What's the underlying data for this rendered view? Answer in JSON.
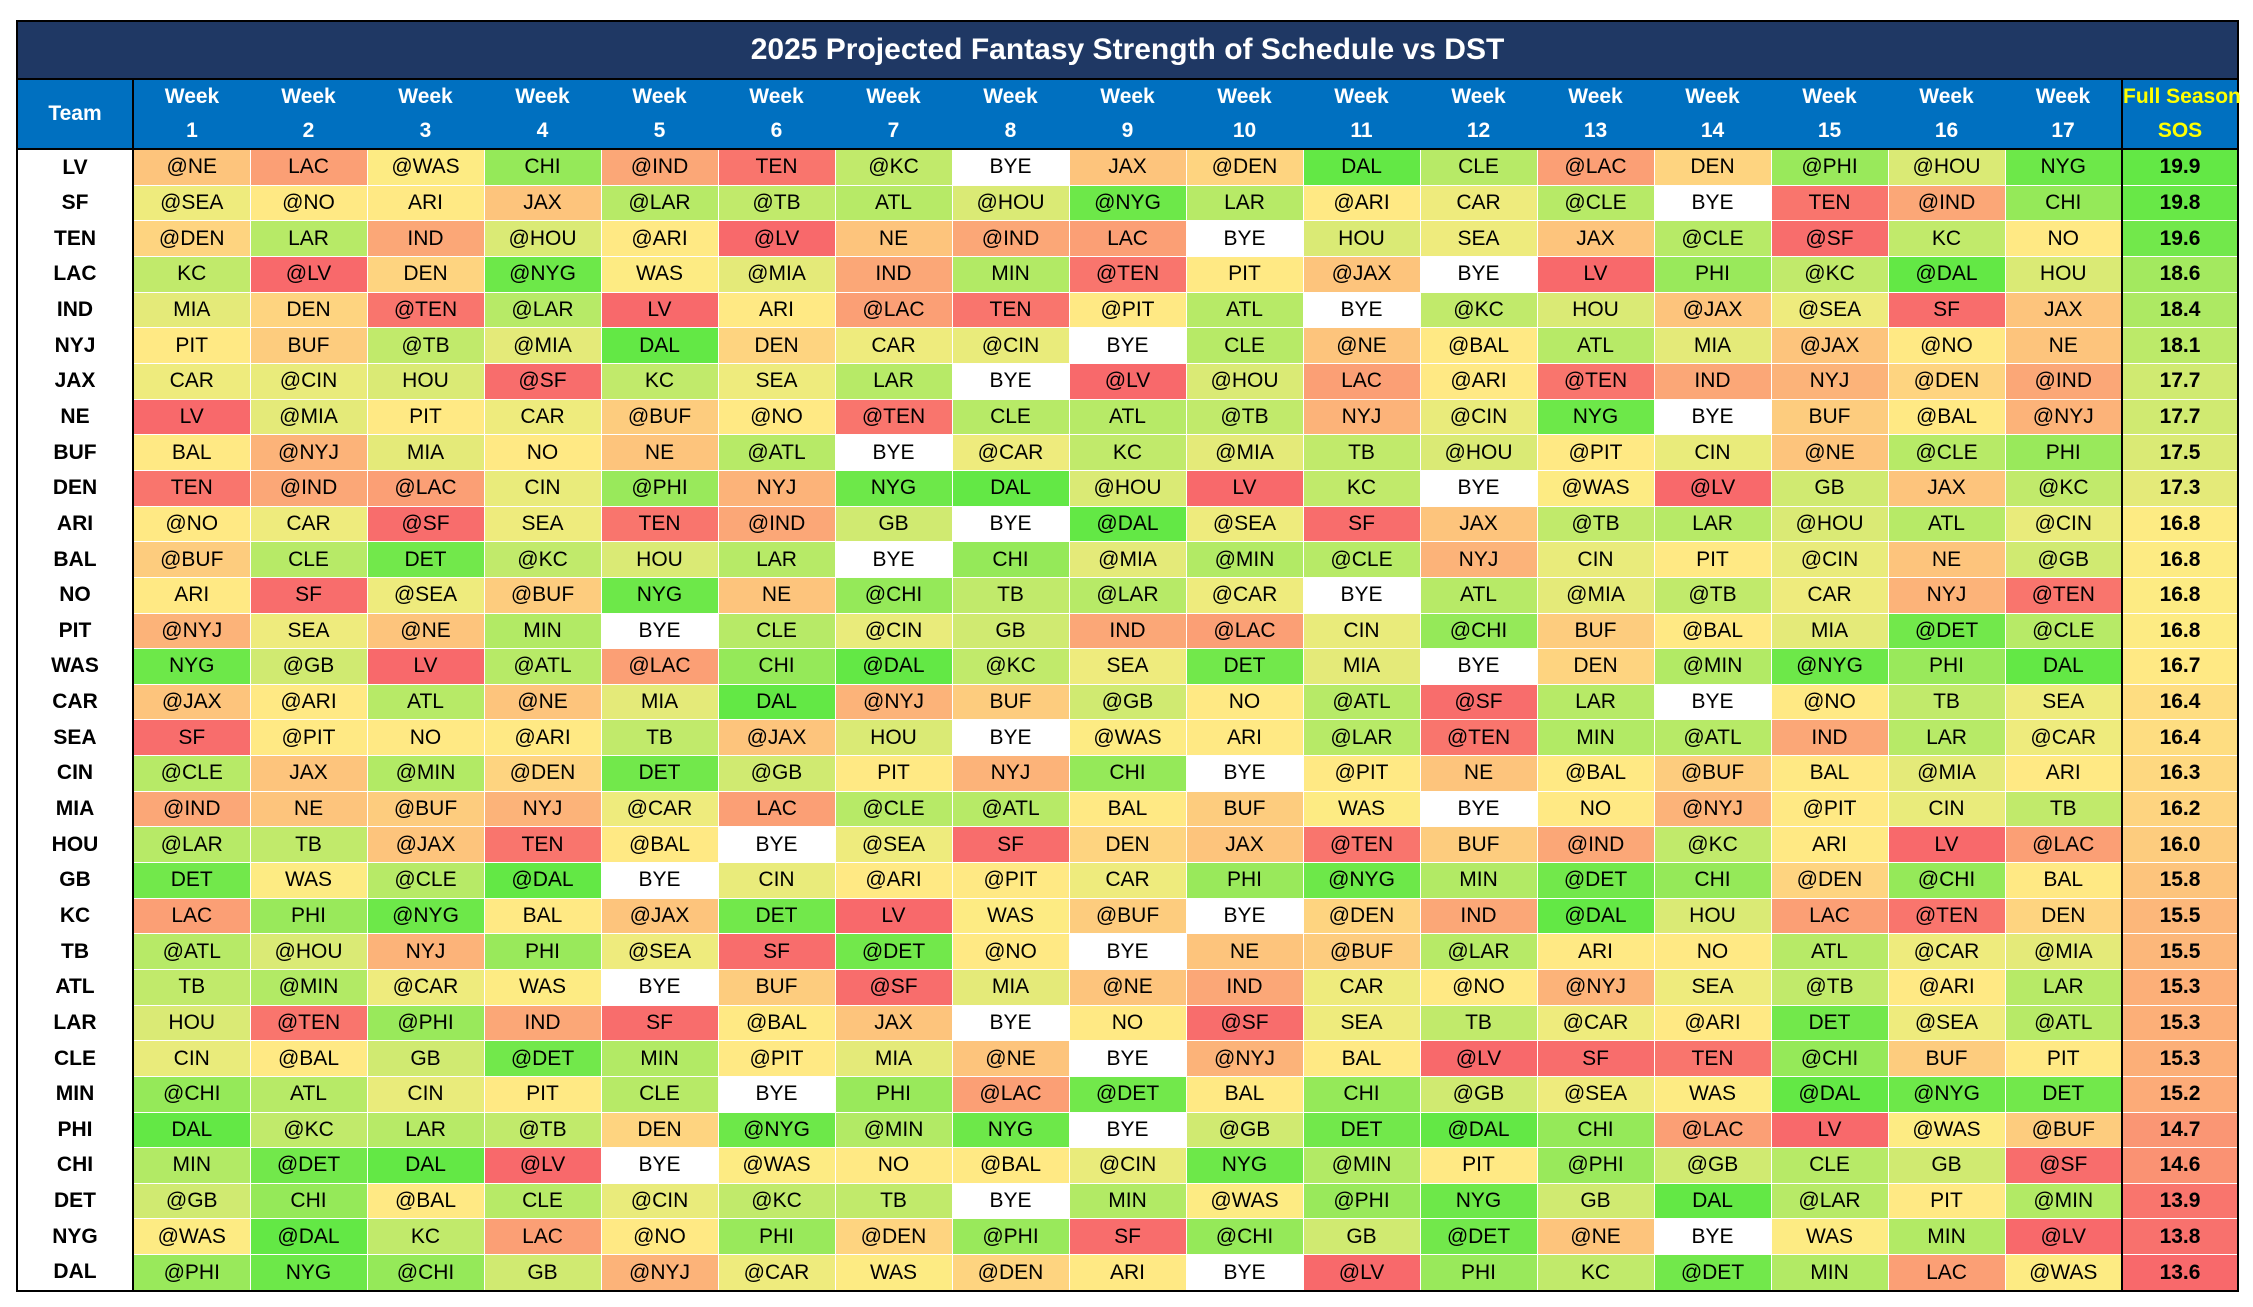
{
  "title": "2025 Projected Fantasy Strength of Schedule vs DST",
  "header": {
    "team": "Team",
    "week_word": "Week",
    "weeks": [
      "1",
      "2",
      "3",
      "4",
      "5",
      "6",
      "7",
      "8",
      "9",
      "10",
      "11",
      "12",
      "13",
      "14",
      "15",
      "16",
      "17"
    ],
    "sos_line1": "Full Season",
    "sos_line2": "SOS"
  },
  "rows": [
    {
      "team": "LV",
      "games": [
        "@NE",
        "LAC",
        "@WAS",
        "CHI",
        "@IND",
        "TEN",
        "@KC",
        "BYE",
        "JAX",
        "@DEN",
        "DAL",
        "CLE",
        "@LAC",
        "DEN",
        "@PHI",
        "@HOU",
        "NYG"
      ],
      "sos": "19.9"
    },
    {
      "team": "SF",
      "games": [
        "@SEA",
        "@NO",
        "ARI",
        "JAX",
        "@LAR",
        "@TB",
        "ATL",
        "@HOU",
        "@NYG",
        "LAR",
        "@ARI",
        "CAR",
        "@CLE",
        "BYE",
        "TEN",
        "@IND",
        "CHI"
      ],
      "sos": "19.8"
    },
    {
      "team": "TEN",
      "games": [
        "@DEN",
        "LAR",
        "IND",
        "@HOU",
        "@ARI",
        "@LV",
        "NE",
        "@IND",
        "LAC",
        "BYE",
        "HOU",
        "SEA",
        "JAX",
        "@CLE",
        "@SF",
        "KC",
        "NO"
      ],
      "sos": "19.6"
    },
    {
      "team": "LAC",
      "games": [
        "KC",
        "@LV",
        "DEN",
        "@NYG",
        "WAS",
        "@MIA",
        "IND",
        "MIN",
        "@TEN",
        "PIT",
        "@JAX",
        "BYE",
        "LV",
        "PHI",
        "@KC",
        "@DAL",
        "HOU"
      ],
      "sos": "18.6"
    },
    {
      "team": "IND",
      "games": [
        "MIA",
        "DEN",
        "@TEN",
        "@LAR",
        "LV",
        "ARI",
        "@LAC",
        "TEN",
        "@PIT",
        "ATL",
        "BYE",
        "@KC",
        "HOU",
        "@JAX",
        "@SEA",
        "SF",
        "JAX"
      ],
      "sos": "18.4"
    },
    {
      "team": "NYJ",
      "games": [
        "PIT",
        "BUF",
        "@TB",
        "@MIA",
        "DAL",
        "DEN",
        "CAR",
        "@CIN",
        "BYE",
        "CLE",
        "@NE",
        "@BAL",
        "ATL",
        "MIA",
        "@JAX",
        "@NO",
        "NE"
      ],
      "sos": "18.1"
    },
    {
      "team": "JAX",
      "games": [
        "CAR",
        "@CIN",
        "HOU",
        "@SF",
        "KC",
        "SEA",
        "LAR",
        "BYE",
        "@LV",
        "@HOU",
        "LAC",
        "@ARI",
        "@TEN",
        "IND",
        "NYJ",
        "@DEN",
        "@IND"
      ],
      "sos": "17.7"
    },
    {
      "team": "NE",
      "games": [
        "LV",
        "@MIA",
        "PIT",
        "CAR",
        "@BUF",
        "@NO",
        "@TEN",
        "CLE",
        "ATL",
        "@TB",
        "NYJ",
        "@CIN",
        "NYG",
        "BYE",
        "BUF",
        "@BAL",
        "@NYJ"
      ],
      "sos": "17.7"
    },
    {
      "team": "BUF",
      "games": [
        "BAL",
        "@NYJ",
        "MIA",
        "NO",
        "NE",
        "@ATL",
        "BYE",
        "@CAR",
        "KC",
        "@MIA",
        "TB",
        "@HOU",
        "@PIT",
        "CIN",
        "@NE",
        "@CLE",
        "PHI"
      ],
      "sos": "17.5"
    },
    {
      "team": "DEN",
      "games": [
        "TEN",
        "@IND",
        "@LAC",
        "CIN",
        "@PHI",
        "NYJ",
        "NYG",
        "DAL",
        "@HOU",
        "LV",
        "KC",
        "BYE",
        "@WAS",
        "@LV",
        "GB",
        "JAX",
        "@KC"
      ],
      "sos": "17.3"
    },
    {
      "team": "ARI",
      "games": [
        "@NO",
        "CAR",
        "@SF",
        "SEA",
        "TEN",
        "@IND",
        "GB",
        "BYE",
        "@DAL",
        "@SEA",
        "SF",
        "JAX",
        "@TB",
        "LAR",
        "@HOU",
        "ATL",
        "@CIN"
      ],
      "sos": "16.8"
    },
    {
      "team": "BAL",
      "games": [
        "@BUF",
        "CLE",
        "DET",
        "@KC",
        "HOU",
        "LAR",
        "BYE",
        "CHI",
        "@MIA",
        "@MIN",
        "@CLE",
        "NYJ",
        "CIN",
        "PIT",
        "@CIN",
        "NE",
        "@GB"
      ],
      "sos": "16.8"
    },
    {
      "team": "NO",
      "games": [
        "ARI",
        "SF",
        "@SEA",
        "@BUF",
        "NYG",
        "NE",
        "@CHI",
        "TB",
        "@LAR",
        "@CAR",
        "BYE",
        "ATL",
        "@MIA",
        "@TB",
        "CAR",
        "NYJ",
        "@TEN"
      ],
      "sos": "16.8"
    },
    {
      "team": "PIT",
      "games": [
        "@NYJ",
        "SEA",
        "@NE",
        "MIN",
        "BYE",
        "CLE",
        "@CIN",
        "GB",
        "IND",
        "@LAC",
        "CIN",
        "@CHI",
        "BUF",
        "@BAL",
        "MIA",
        "@DET",
        "@CLE"
      ],
      "sos": "16.8"
    },
    {
      "team": "WAS",
      "games": [
        "NYG",
        "@GB",
        "LV",
        "@ATL",
        "@LAC",
        "CHI",
        "@DAL",
        "@KC",
        "SEA",
        "DET",
        "MIA",
        "BYE",
        "DEN",
        "@MIN",
        "@NYG",
        "PHI",
        "DAL"
      ],
      "sos": "16.7"
    },
    {
      "team": "CAR",
      "games": [
        "@JAX",
        "@ARI",
        "ATL",
        "@NE",
        "MIA",
        "DAL",
        "@NYJ",
        "BUF",
        "@GB",
        "NO",
        "@ATL",
        "@SF",
        "LAR",
        "BYE",
        "@NO",
        "TB",
        "SEA"
      ],
      "sos": "16.4"
    },
    {
      "team": "SEA",
      "games": [
        "SF",
        "@PIT",
        "NO",
        "@ARI",
        "TB",
        "@JAX",
        "HOU",
        "BYE",
        "@WAS",
        "ARI",
        "@LAR",
        "@TEN",
        "MIN",
        "@ATL",
        "IND",
        "LAR",
        "@CAR"
      ],
      "sos": "16.4"
    },
    {
      "team": "CIN",
      "games": [
        "@CLE",
        "JAX",
        "@MIN",
        "@DEN",
        "DET",
        "@GB",
        "PIT",
        "NYJ",
        "CHI",
        "BYE",
        "@PIT",
        "NE",
        "@BAL",
        "@BUF",
        "BAL",
        "@MIA",
        "ARI"
      ],
      "sos": "16.3"
    },
    {
      "team": "MIA",
      "games": [
        "@IND",
        "NE",
        "@BUF",
        "NYJ",
        "@CAR",
        "LAC",
        "@CLE",
        "@ATL",
        "BAL",
        "BUF",
        "WAS",
        "BYE",
        "NO",
        "@NYJ",
        "@PIT",
        "CIN",
        "TB"
      ],
      "sos": "16.2"
    },
    {
      "team": "HOU",
      "games": [
        "@LAR",
        "TB",
        "@JAX",
        "TEN",
        "@BAL",
        "BYE",
        "@SEA",
        "SF",
        "DEN",
        "JAX",
        "@TEN",
        "BUF",
        "@IND",
        "@KC",
        "ARI",
        "LV",
        "@LAC"
      ],
      "sos": "16.0"
    },
    {
      "team": "GB",
      "games": [
        "DET",
        "WAS",
        "@CLE",
        "@DAL",
        "BYE",
        "CIN",
        "@ARI",
        "@PIT",
        "CAR",
        "PHI",
        "@NYG",
        "MIN",
        "@DET",
        "CHI",
        "@DEN",
        "@CHI",
        "BAL"
      ],
      "sos": "15.8"
    },
    {
      "team": "KC",
      "games": [
        "LAC",
        "PHI",
        "@NYG",
        "BAL",
        "@JAX",
        "DET",
        "LV",
        "WAS",
        "@BUF",
        "BYE",
        "@DEN",
        "IND",
        "@DAL",
        "HOU",
        "LAC",
        "@TEN",
        "DEN"
      ],
      "sos": "15.5"
    },
    {
      "team": "TB",
      "games": [
        "@ATL",
        "@HOU",
        "NYJ",
        "PHI",
        "@SEA",
        "SF",
        "@DET",
        "@NO",
        "BYE",
        "NE",
        "@BUF",
        "@LAR",
        "ARI",
        "NO",
        "ATL",
        "@CAR",
        "@MIA"
      ],
      "sos": "15.5"
    },
    {
      "team": "ATL",
      "games": [
        "TB",
        "@MIN",
        "@CAR",
        "WAS",
        "BYE",
        "BUF",
        "@SF",
        "MIA",
        "@NE",
        "IND",
        "CAR",
        "@NO",
        "@NYJ",
        "SEA",
        "@TB",
        "@ARI",
        "LAR"
      ],
      "sos": "15.3"
    },
    {
      "team": "LAR",
      "games": [
        "HOU",
        "@TEN",
        "@PHI",
        "IND",
        "SF",
        "@BAL",
        "JAX",
        "BYE",
        "NO",
        "@SF",
        "SEA",
        "TB",
        "@CAR",
        "@ARI",
        "DET",
        "@SEA",
        "@ATL"
      ],
      "sos": "15.3"
    },
    {
      "team": "CLE",
      "games": [
        "CIN",
        "@BAL",
        "GB",
        "@DET",
        "MIN",
        "@PIT",
        "MIA",
        "@NE",
        "BYE",
        "@NYJ",
        "BAL",
        "@LV",
        "SF",
        "TEN",
        "@CHI",
        "BUF",
        "PIT"
      ],
      "sos": "15.3"
    },
    {
      "team": "MIN",
      "games": [
        "@CHI",
        "ATL",
        "CIN",
        "PIT",
        "CLE",
        "BYE",
        "PHI",
        "@LAC",
        "@DET",
        "BAL",
        "CHI",
        "@GB",
        "@SEA",
        "WAS",
        "@DAL",
        "@NYG",
        "DET"
      ],
      "sos": "15.2"
    },
    {
      "team": "PHI",
      "games": [
        "DAL",
        "@KC",
        "LAR",
        "@TB",
        "DEN",
        "@NYG",
        "@MIN",
        "NYG",
        "BYE",
        "@GB",
        "DET",
        "@DAL",
        "CHI",
        "@LAC",
        "LV",
        "@WAS",
        "@BUF"
      ],
      "sos": "14.7"
    },
    {
      "team": "CHI",
      "games": [
        "MIN",
        "@DET",
        "DAL",
        "@LV",
        "BYE",
        "@WAS",
        "NO",
        "@BAL",
        "@CIN",
        "NYG",
        "@MIN",
        "PIT",
        "@PHI",
        "@GB",
        "CLE",
        "GB",
        "@SF"
      ],
      "sos": "14.6"
    },
    {
      "team": "DET",
      "games": [
        "@GB",
        "CHI",
        "@BAL",
        "CLE",
        "@CIN",
        "@KC",
        "TB",
        "BYE",
        "MIN",
        "@WAS",
        "@PHI",
        "NYG",
        "GB",
        "DAL",
        "@LAR",
        "PIT",
        "@MIN"
      ],
      "sos": "13.9"
    },
    {
      "team": "NYG",
      "games": [
        "@WAS",
        "@DAL",
        "KC",
        "LAC",
        "@NO",
        "PHI",
        "@DEN",
        "@PHI",
        "SF",
        "@CHI",
        "GB",
        "@DET",
        "@NE",
        "BYE",
        "WAS",
        "MIN",
        "@LV"
      ],
      "sos": "13.8"
    },
    {
      "team": "DAL",
      "games": [
        "@PHI",
        "NYG",
        "@CHI",
        "GB",
        "@NYJ",
        "@CAR",
        "WAS",
        "@DEN",
        "ARI",
        "BYE",
        "@LV",
        "PHI",
        "KC",
        "@DET",
        "MIN",
        "LAC",
        "@WAS"
      ],
      "sos": "13.6"
    }
  ],
  "colors": {
    "title_bg": "#1f3864",
    "header_bg": "#0070c0",
    "sos_label": "#ffff00",
    "scale_high": "#63e845",
    "scale_mid": "#ffeb84",
    "scale_low": "#f8696b",
    "bye": "#ffffff"
  }
}
